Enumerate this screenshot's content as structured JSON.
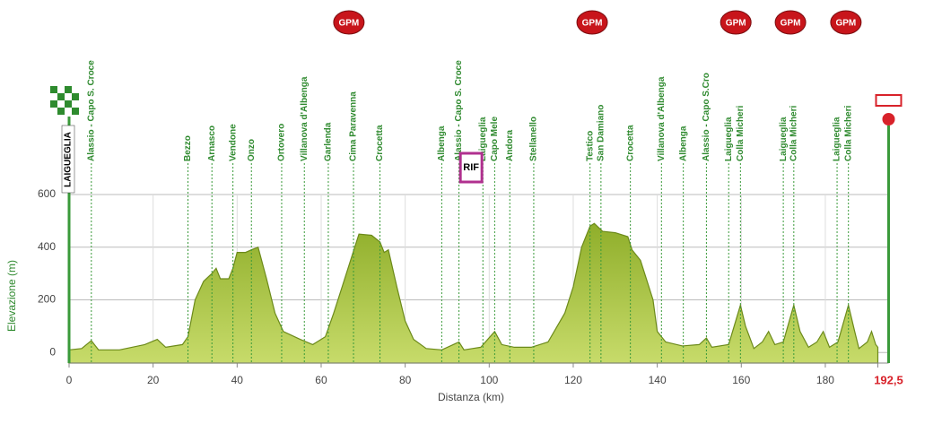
{
  "chart_data": {
    "type": "area",
    "xlabel": "Distanza (km)",
    "ylabel": "Elevazione (m)",
    "start_label": "LAIGUEGLIA",
    "x": [
      0,
      3,
      5.3,
      7,
      12,
      18,
      21,
      23,
      27,
      28.3,
      30,
      32,
      34,
      35,
      36,
      38,
      39,
      40,
      42,
      43.4,
      45,
      47,
      49,
      51,
      55,
      58,
      61,
      63,
      66,
      68,
      69,
      72,
      74,
      75,
      76,
      78,
      80,
      82,
      85,
      88.7,
      92.8,
      94,
      96,
      98,
      101.3,
      103,
      106,
      110,
      114,
      118,
      120,
      122,
      124,
      125,
      127,
      130,
      133,
      134,
      136,
      139,
      140,
      142,
      146,
      150,
      151.7,
      153,
      157,
      159.8,
      161,
      163,
      165,
      166.5,
      168,
      170,
      172.5,
      174,
      176,
      178,
      179.5,
      181,
      183,
      185.5,
      187,
      188,
      190,
      191,
      192,
      192.5
    ],
    "values": [
      10,
      15,
      45,
      10,
      10,
      30,
      50,
      20,
      30,
      60,
      200,
      270,
      300,
      320,
      280,
      280,
      320,
      380,
      380,
      390,
      400,
      280,
      150,
      80,
      50,
      30,
      60,
      150,
      300,
      400,
      450,
      445,
      420,
      380,
      390,
      250,
      120,
      50,
      15,
      10,
      40,
      10,
      15,
      20,
      80,
      30,
      20,
      20,
      40,
      150,
      250,
      400,
      480,
      490,
      460,
      455,
      440,
      390,
      350,
      200,
      80,
      40,
      25,
      30,
      55,
      20,
      30,
      180,
      100,
      15,
      40,
      80,
      30,
      40,
      180,
      80,
      20,
      40,
      80,
      20,
      40,
      180,
      80,
      15,
      40,
      80,
      30,
      20
    ],
    "color": "#a9c53e",
    "xlim": [
      0,
      192.5
    ],
    "ylim": [
      -40,
      600
    ],
    "xticks": [
      0,
      20,
      40,
      60,
      80,
      100,
      120,
      140,
      160,
      180,
      {
        "value": 192.5,
        "label": "192,5"
      }
    ],
    "yticks": [
      0,
      200,
      400,
      600
    ],
    "grid": true,
    "locations": [
      {
        "name": "Alassio - Capo S. Croce",
        "km": 5.3
      },
      {
        "name": "Bezzo",
        "km": 28.3
      },
      {
        "name": "Arnasco",
        "km": 34
      },
      {
        "name": "Vendone",
        "km": 39
      },
      {
        "name": "Onzo",
        "km": 43.4
      },
      {
        "name": "Ortovero",
        "km": 50.6
      },
      {
        "name": "Villanova d'Albenga",
        "km": 56
      },
      {
        "name": "Garlenda",
        "km": 61.7
      },
      {
        "name": "Cima Paravenna",
        "km": 67.7
      },
      {
        "name": "Crocetta",
        "km": 74
      },
      {
        "name": "Albenga",
        "km": 88.7
      },
      {
        "name": "Alassio - Capo S. Croce",
        "km": 92.8
      },
      {
        "name": "Laigueglia",
        "km": 98.5
      },
      {
        "name": "Capo Mele",
        "km": 101.3
      },
      {
        "name": "Andora",
        "km": 104.9
      },
      {
        "name": "Stellanello",
        "km": 110.6
      },
      {
        "name": "Testico",
        "km": 124
      },
      {
        "name": "San Damiano",
        "km": 126.6
      },
      {
        "name": "Crocetta",
        "km": 133.6
      },
      {
        "name": "Villanova d'Albenga",
        "km": 141
      },
      {
        "name": "Albenga",
        "km": 146.2
      },
      {
        "name": "Alassio - Capo S.Cro",
        "km": 151.7
      },
      {
        "name": "Laigueglia",
        "km": 157
      },
      {
        "name": "Colla Micheri",
        "km": 159.8
      },
      {
        "name": "Laigueglia",
        "km": 170
      },
      {
        "name": "Colla Micheri",
        "km": 172.5
      },
      {
        "name": "Laigueglia",
        "km": 182.8
      },
      {
        "name": "Colla Micheri",
        "km": 185.5
      }
    ],
    "gpm": [
      {
        "label": "GPM",
        "km": 66.6
      },
      {
        "label": "GPM",
        "km": 124.5
      },
      {
        "label": "GPM",
        "km": 158.7
      },
      {
        "label": "GPM",
        "km": 171.7
      },
      {
        "label": "GPM",
        "km": 184.9
      }
    ],
    "rif": {
      "label": "RIF",
      "km": 95.7
    }
  }
}
